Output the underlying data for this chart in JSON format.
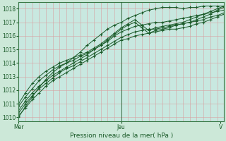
{
  "title": "",
  "xlabel": "Pression niveau de la mer( hPa )",
  "ylabel": "",
  "bg_color": "#cce8d8",
  "plot_bg_color": "#c8e8e0",
  "grid_major_color": "#e8b8b8",
  "grid_minor_color": "#e8c8c8",
  "line_color": "#1a5a28",
  "marker_color": "#1a5a28",
  "spine_color": "#3a7a48",
  "tick_color": "#1a5a28",
  "xlabel_color": "#1a5a28",
  "ylim": [
    1009.7,
    1018.5
  ],
  "xlim": [
    0,
    60
  ],
  "yticks": [
    1010,
    1011,
    1012,
    1013,
    1014,
    1015,
    1016,
    1017,
    1018
  ],
  "xtick_labels": [
    "Mer",
    "Jeu",
    "V"
  ],
  "xtick_positions": [
    0,
    30,
    59
  ],
  "vline_x": 30,
  "lines": [
    [
      1010.0,
      1010.8,
      1011.5,
      1012.2,
      1012.8,
      1013.3,
      1013.7,
      1014.0,
      1014.4,
      1014.8,
      1015.3,
      1015.7,
      1016.1,
      1016.5,
      1016.8,
      1017.0,
      1017.3,
      1017.5,
      1017.7,
      1017.9,
      1018.0,
      1018.1,
      1018.1,
      1018.1,
      1018.0,
      1018.1,
      1018.1,
      1018.2,
      1018.2,
      1018.2,
      1018.2
    ],
    [
      1010.5,
      1011.2,
      1011.8,
      1012.3,
      1012.7,
      1013.1,
      1013.4,
      1013.7,
      1014.0,
      1014.3,
      1014.6,
      1015.0,
      1015.3,
      1015.6,
      1016.0,
      1016.3,
      1016.5,
      1016.7,
      1016.8,
      1016.9,
      1017.0,
      1017.0,
      1017.1,
      1017.2,
      1017.3,
      1017.4,
      1017.5,
      1017.6,
      1017.7,
      1017.8,
      1017.9
    ],
    [
      1010.3,
      1011.0,
      1011.6,
      1012.1,
      1012.5,
      1012.9,
      1013.3,
      1013.6,
      1013.8,
      1014.1,
      1014.4,
      1014.7,
      1015.0,
      1015.3,
      1015.6,
      1015.9,
      1016.1,
      1016.3,
      1016.4,
      1016.5,
      1016.5,
      1016.6,
      1016.7,
      1016.8,
      1016.9,
      1017.0,
      1017.1,
      1017.2,
      1017.4,
      1017.5,
      1017.7
    ],
    [
      1010.1,
      1010.7,
      1011.3,
      1011.8,
      1012.3,
      1012.7,
      1013.0,
      1013.3,
      1013.6,
      1013.9,
      1014.2,
      1014.5,
      1014.8,
      1015.1,
      1015.4,
      1015.7,
      1015.8,
      1016.0,
      1016.1,
      1016.2,
      1016.3,
      1016.4,
      1016.5,
      1016.5,
      1016.6,
      1016.7,
      1016.9,
      1017.0,
      1017.2,
      1017.4,
      1017.6
    ],
    [
      1010.8,
      1011.5,
      1012.1,
      1012.7,
      1013.1,
      1013.5,
      1013.8,
      1014.0,
      1014.2,
      1014.5,
      1014.7,
      1015.0,
      1015.3,
      1015.7,
      1016.1,
      1016.5,
      1016.8,
      1017.0,
      1016.6,
      1016.2,
      1016.4,
      1016.5,
      1016.6,
      1016.8,
      1016.9,
      1017.0,
      1017.2,
      1017.4,
      1017.6,
      1017.9,
      1018.1
    ],
    [
      1011.0,
      1011.8,
      1012.5,
      1013.0,
      1013.4,
      1013.7,
      1014.0,
      1014.2,
      1014.4,
      1014.6,
      1014.8,
      1015.1,
      1015.4,
      1015.8,
      1016.2,
      1016.6,
      1016.9,
      1017.2,
      1016.8,
      1016.4,
      1016.6,
      1016.7,
      1016.8,
      1016.9,
      1017.0,
      1017.2,
      1017.4,
      1017.6,
      1017.8,
      1018.0,
      1018.2
    ]
  ]
}
